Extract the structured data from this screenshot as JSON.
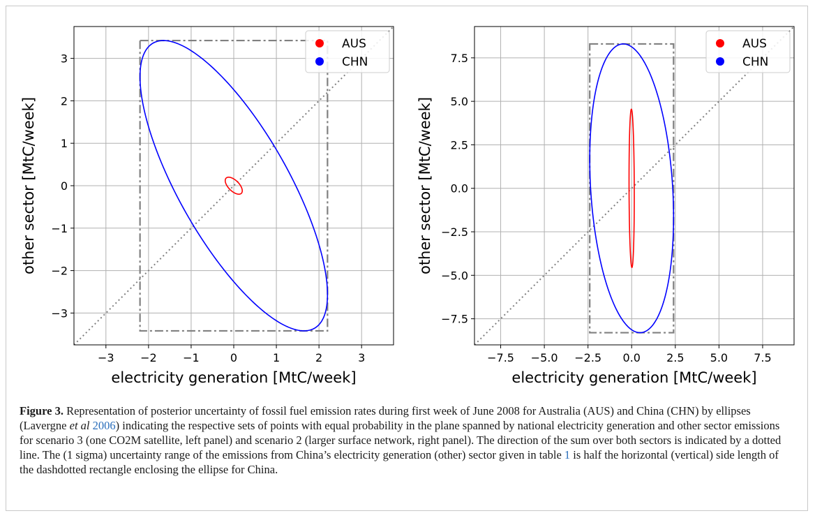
{
  "chart_data": [
    {
      "type": "scatter",
      "panel": "left",
      "xlabel": "electricity generation [MtC/week]",
      "ylabel": "other sector [MtC/week]",
      "xlim": [
        -3.75,
        3.75
      ],
      "ylim": [
        -3.75,
        3.75
      ],
      "xticks": [
        -3,
        -2,
        -1,
        0,
        1,
        2,
        3
      ],
      "yticks": [
        -3,
        -2,
        -1,
        0,
        1,
        2,
        3
      ],
      "xtick_labels": [
        "−3",
        "−2",
        "−1",
        "0",
        "1",
        "2",
        "3"
      ],
      "ytick_labels": [
        "−3",
        "−2",
        "−1",
        "0",
        "1",
        "2",
        "3"
      ],
      "grid": true,
      "legend_position": "top-right",
      "series": [
        {
          "name": "AUS",
          "color": "#ff0000",
          "ellipse": {
            "sx": 0.2,
            "sy": 0.2,
            "rho": -0.6
          }
        },
        {
          "name": "CHN",
          "color": "#0000ff",
          "ellipse": {
            "sx": 2.2,
            "sy": 3.42,
            "rho": -0.75
          }
        }
      ],
      "bounding_box": {
        "x": [
          -2.2,
          2.2
        ],
        "y": [
          -3.42,
          3.42
        ]
      },
      "diagonal_line": "y = x"
    },
    {
      "type": "scatter",
      "panel": "right",
      "xlabel": "electricity generation [MtC/week]",
      "ylabel": "other sector [MtC/week]",
      "xlim": [
        -9,
        9.3
      ],
      "ylim": [
        -9,
        9.3
      ],
      "xticks": [
        -7.5,
        -5.0,
        -2.5,
        0.0,
        2.5,
        5.0,
        7.5
      ],
      "yticks": [
        -7.5,
        -5.0,
        -2.5,
        0.0,
        2.5,
        5.0,
        7.5
      ],
      "xtick_labels": [
        "−7.5",
        "−5.0",
        "−2.5",
        "0.0",
        "2.5",
        "5.0",
        "7.5"
      ],
      "ytick_labels": [
        "−7.5",
        "−5.0",
        "−2.5",
        "0.0",
        "2.5",
        "5.0",
        "7.5"
      ],
      "grid": true,
      "legend_position": "top-right",
      "series": [
        {
          "name": "AUS",
          "color": "#ff0000",
          "ellipse": {
            "sx": 0.15,
            "sy": 4.55,
            "rho": -0.1
          }
        },
        {
          "name": "CHN",
          "color": "#0000ff",
          "ellipse": {
            "sx": 2.4,
            "sy": 8.3,
            "rho": -0.2
          }
        }
      ],
      "bounding_box": {
        "x": [
          -2.4,
          2.4
        ],
        "y": [
          -8.3,
          8.3
        ]
      },
      "diagonal_line": "y = x"
    }
  ],
  "caption": {
    "label": "Figure 3.",
    "text_1": " Representation of posterior uncertainty of fossil fuel emission rates during first week of June 2008 for Australia (AUS) and China (CHN) by ellipses (Lavergne ",
    "etal": "et al",
    "space": " ",
    "year_ref": "2006",
    "text_2": ") indicating the respective sets of points with equal probability in the plane spanned by national electricity generation and other sector emissions for scenario 3 (one CO2M satellite, left panel) and scenario 2 (larger surface network, right panel). The direction of the sum over both sectors is indicated by a dotted line. The (1 sigma) uncertainty range of the emissions from China’s electricity generation (other) sector given in table ",
    "table_ref": "1",
    "text_3": " is half the horizontal (vertical) side length of the dashdotted rectangle enclosing the ellipse for China."
  }
}
